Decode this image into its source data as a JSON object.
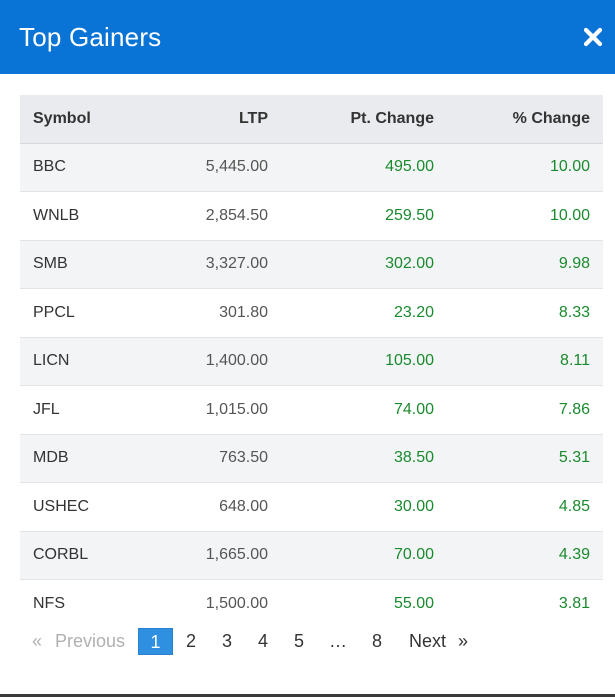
{
  "modal": {
    "title": "Top Gainers"
  },
  "table": {
    "headers": {
      "symbol": "Symbol",
      "ltp": "LTP",
      "pt_change": "Pt. Change",
      "pct_change": "% Change"
    },
    "rows": [
      {
        "symbol": "BBC",
        "ltp": "5,445.00",
        "pt_change": "495.00",
        "pct_change": "10.00"
      },
      {
        "symbol": "WNLB",
        "ltp": "2,854.50",
        "pt_change": "259.50",
        "pct_change": "10.00"
      },
      {
        "symbol": "SMB",
        "ltp": "3,327.00",
        "pt_change": "302.00",
        "pct_change": "9.98"
      },
      {
        "symbol": "PPCL",
        "ltp": "301.80",
        "pt_change": "23.20",
        "pct_change": "8.33"
      },
      {
        "symbol": "LICN",
        "ltp": "1,400.00",
        "pt_change": "105.00",
        "pct_change": "8.11"
      },
      {
        "symbol": "JFL",
        "ltp": "1,015.00",
        "pt_change": "74.00",
        "pct_change": "7.86"
      },
      {
        "symbol": "MDB",
        "ltp": "763.50",
        "pt_change": "38.50",
        "pct_change": "5.31"
      },
      {
        "symbol": "USHEC",
        "ltp": "648.00",
        "pt_change": "30.00",
        "pct_change": "4.85"
      },
      {
        "symbol": "CORBL",
        "ltp": "1,665.00",
        "pt_change": "70.00",
        "pct_change": "4.39"
      },
      {
        "symbol": "NFS",
        "ltp": "1,500.00",
        "pt_change": "55.00",
        "pct_change": "3.81"
      }
    ]
  },
  "pagination": {
    "prev_arrow": "«",
    "prev_label": "Previous",
    "pages": [
      "1",
      "2",
      "3",
      "4",
      "5"
    ],
    "active_page": "1",
    "ellipsis": "…",
    "last_page": "8",
    "next_label": "Next",
    "next_arrow": "»"
  },
  "colors": {
    "header_bg": "#0a74d6",
    "positive": "#1a8a2e",
    "active_page_bg": "#2f8fe0"
  },
  "icons": {
    "close": "close-icon"
  }
}
